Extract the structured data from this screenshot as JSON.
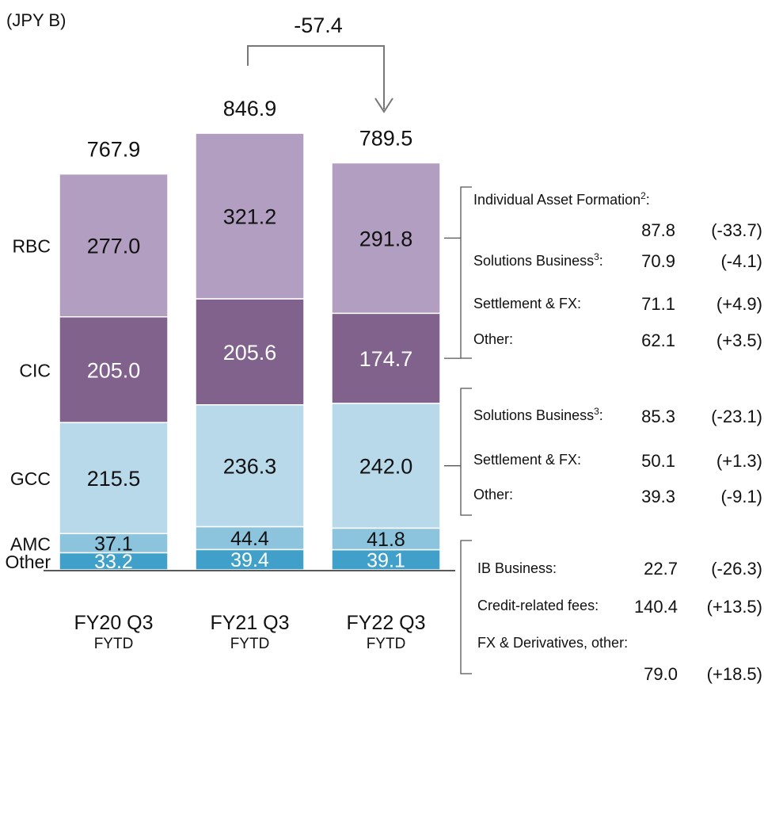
{
  "unit_label": "(JPY B)",
  "change_label": "-57.4",
  "chart_data": {
    "type": "bar",
    "stacked": true,
    "categories": [
      "FY20 Q3",
      "FY21 Q3",
      "FY22 Q3"
    ],
    "category_sublabels": [
      "FYTD",
      "FYTD",
      "FYTD"
    ],
    "totals": [
      767.9,
      846.9,
      789.5
    ],
    "series": [
      {
        "name": "Other",
        "values": [
          33.2,
          39.4,
          39.1
        ],
        "color": "#41a0c9",
        "label_color": "#ffffff"
      },
      {
        "name": "AMC",
        "values": [
          37.1,
          44.4,
          41.8
        ],
        "color": "#8cc4de",
        "label_color": "#111111"
      },
      {
        "name": "GCC",
        "values": [
          215.5,
          236.3,
          242.0
        ],
        "color": "#b7d9ea",
        "label_color": "#111111"
      },
      {
        "name": "CIC",
        "values": [
          205.0,
          205.6,
          174.7
        ],
        "color": "#80628c",
        "label_color": "#ffffff"
      },
      {
        "name": "RBC",
        "values": [
          277.0,
          321.2,
          291.8
        ],
        "color": "#b19ec0",
        "label_color": "#111111"
      }
    ],
    "breakdowns": [
      {
        "segment": "RBC",
        "items": [
          {
            "label": "Individual Asset Formation",
            "sup": "2",
            "suffix": ":",
            "value": "87.8",
            "change": "(-33.7)"
          },
          {
            "label": "Solutions Business",
            "sup": "3",
            "suffix": ":",
            "value": "70.9",
            "change": "(-4.1)"
          },
          {
            "label": "Settlement & FX:",
            "sup": "",
            "suffix": "",
            "value": "71.1",
            "change": "(+4.9)"
          },
          {
            "label": "Other:",
            "sup": "",
            "suffix": "",
            "value": "62.1",
            "change": "(+3.5)"
          }
        ]
      },
      {
        "segment": "CIC",
        "items": [
          {
            "label": "Solutions Business",
            "sup": "3",
            "suffix": ":",
            "value": "85.3",
            "change": "(-23.1)"
          },
          {
            "label": "Settlement & FX:",
            "sup": "",
            "suffix": "",
            "value": "50.1",
            "change": "(+1.3)"
          },
          {
            "label": "Other:",
            "sup": "",
            "suffix": "",
            "value": "39.3",
            "change": "(-9.1)"
          }
        ]
      },
      {
        "segment": "GCC",
        "items": [
          {
            "label": "IB Business:",
            "sup": "",
            "suffix": "",
            "value": "22.7",
            "change": "(-26.3)"
          },
          {
            "label": "Credit-related fees:",
            "sup": "",
            "suffix": "",
            "value": "140.4",
            "change": "(+13.5)"
          },
          {
            "label": "FX & Derivatives, other:",
            "sup": "",
            "suffix": "",
            "value": "79.0",
            "change": "(+18.5)"
          }
        ]
      }
    ]
  }
}
